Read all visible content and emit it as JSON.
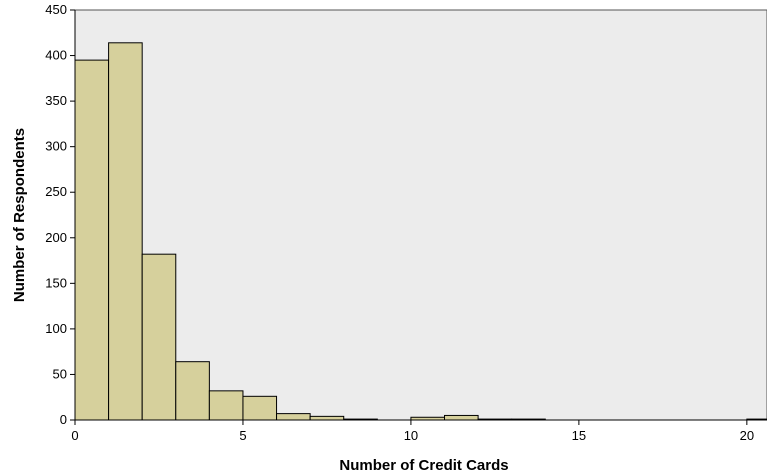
{
  "chart_data": {
    "type": "bar",
    "subtype": "histogram",
    "xlabel": "Number of Credit Cards",
    "ylabel": "Number of Respondents",
    "xlim": [
      0,
      20.6
    ],
    "ylim": [
      0,
      450
    ],
    "xticks": [
      0,
      5,
      10,
      15,
      20
    ],
    "yticks": [
      0,
      50,
      100,
      150,
      200,
      250,
      300,
      350,
      400,
      450
    ],
    "bin_width": 1,
    "bins": [
      {
        "start": 0,
        "count": 395
      },
      {
        "start": 1,
        "count": 414
      },
      {
        "start": 2,
        "count": 182
      },
      {
        "start": 3,
        "count": 64
      },
      {
        "start": 4,
        "count": 32
      },
      {
        "start": 5,
        "count": 26
      },
      {
        "start": 6,
        "count": 7
      },
      {
        "start": 7,
        "count": 4
      },
      {
        "start": 8,
        "count": 1
      },
      {
        "start": 9,
        "count": 0
      },
      {
        "start": 10,
        "count": 3
      },
      {
        "start": 11,
        "count": 5
      },
      {
        "start": 12,
        "count": 1
      },
      {
        "start": 13,
        "count": 1
      },
      {
        "start": 14,
        "count": 0
      },
      {
        "start": 15,
        "count": 0
      },
      {
        "start": 16,
        "count": 0
      },
      {
        "start": 17,
        "count": 0
      },
      {
        "start": 18,
        "count": 0
      },
      {
        "start": 19,
        "count": 0
      },
      {
        "start": 20,
        "count": 1
      }
    ],
    "grid": false,
    "legend": "none",
    "colors": {
      "bar_fill": "#d6d09c",
      "bar_stroke": "#000000",
      "plot_background": "#ececec",
      "frame": "#555555"
    }
  }
}
